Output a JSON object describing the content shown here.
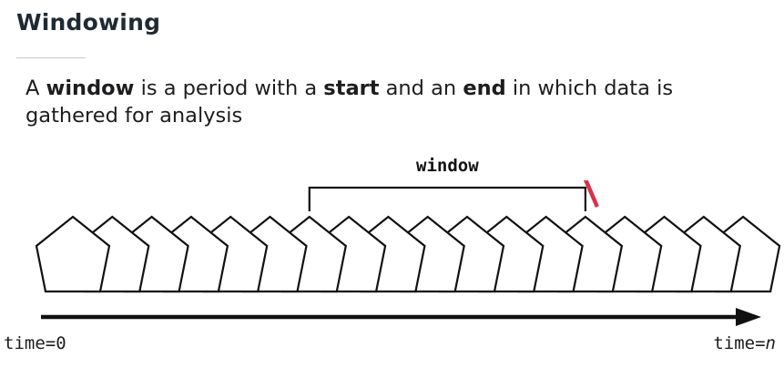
{
  "header": {
    "title": "Windowing"
  },
  "description": {
    "p1": "A ",
    "k1": "window",
    "p2": " is a period with a ",
    "k2": "start",
    "p3": " and an ",
    "k3": "end",
    "p4": " in which data is gathered for analysis"
  },
  "diagram": {
    "window_label": "window",
    "time_start_label": "time=0",
    "time_end_prefix": "time=",
    "time_end_var": "n",
    "pentagon_count": 18,
    "window_start_index": 6,
    "window_end_index": 13,
    "colors": {
      "stroke": "#111111",
      "marker": "#d6334a"
    }
  }
}
